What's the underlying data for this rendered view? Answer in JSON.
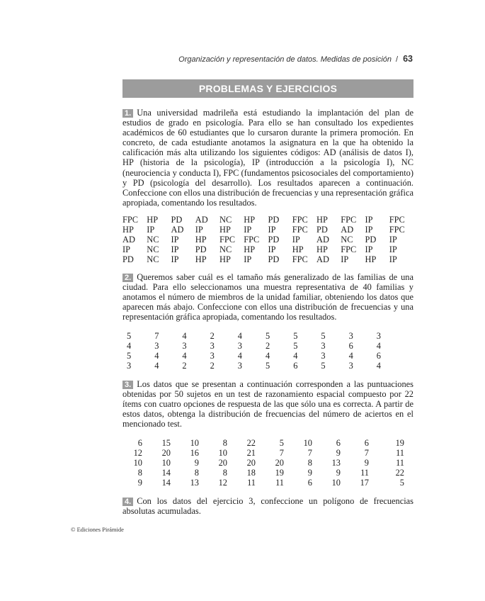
{
  "header": {
    "running_title": "Organización y representación de datos. Medidas de posición",
    "separator": "/",
    "page_number": "63"
  },
  "banner": "PROBLEMAS Y EJERCICIOS",
  "exercises": [
    {
      "number": "1.",
      "text": "Una universidad madrileña está estudiando la implantación del plan de estudios de grado en psicología. Para ello se han consultado los expedientes académicos de 60 estudiantes que lo cursaron durante la primera promoción. En concreto, de cada estudiante anotamos la asignatura en la que ha obtenido la calificación más alta utilizando los siguientes códigos: AD (análisis de datos I), HP (historia de la psicología), IP (introducción a la psicología I), NC (neurociencia y conducta I), FPC (fundamentos psicosociales del comportamiento) y PD (psicología del desarrollo). Los resultados aparecen a continuación. Confeccione con ellos una distribución de frecuencias y una representación gráfica apropiada, comentando los resultados."
    },
    {
      "number": "2.",
      "text": "Queremos saber cuál es el tamaño más generalizado de las familias de una ciudad. Para ello seleccionamos una muestra representativa de 40 familias y anotamos el número de miembros de la unidad familiar, obteniendo los datos que aparecen más abajo. Confeccione con ellos una distribución de frecuencias y una representación gráfica apropiada, comentando los resultados."
    },
    {
      "number": "3.",
      "text": "Los datos que se presentan a continuación corresponden a las puntuaciones obtenidas por 50 sujetos en un test de razonamiento espacial compuesto por 22 ítems con cuatro opciones de respuesta de las que sólo una es correcta. A partir de estos datos, obtenga la distribución de frecuencias del número de aciertos en el mencionado test."
    },
    {
      "number": "4.",
      "text": "Con los datos del ejercicio 3, confeccione un polígono de frecuencias absolutas acumuladas."
    }
  ],
  "table1": [
    [
      "FPC",
      "HP",
      "PD",
      "AD",
      "NC",
      "HP",
      "PD",
      "FPC",
      "HP",
      "FPC",
      "IP",
      "FPC"
    ],
    [
      "HP",
      "IP",
      "AD",
      "IP",
      "HP",
      "IP",
      "IP",
      "FPC",
      "PD",
      "AD",
      "IP",
      "FPC"
    ],
    [
      "AD",
      "NC",
      "IP",
      "HP",
      "FPC",
      "FPC",
      "PD",
      "IP",
      "AD",
      "NC",
      "PD",
      "IP"
    ],
    [
      "IP",
      "NC",
      "IP",
      "PD",
      "NC",
      "HP",
      "IP",
      "HP",
      "HP",
      "FPC",
      "IP",
      "IP"
    ],
    [
      "PD",
      "NC",
      "IP",
      "HP",
      "HP",
      "IP",
      "PD",
      "FPC",
      "AD",
      "IP",
      "HP",
      "IP"
    ]
  ],
  "table2": [
    [
      "5",
      "7",
      "4",
      "2",
      "4",
      "5",
      "5",
      "5",
      "3",
      "3"
    ],
    [
      "4",
      "3",
      "3",
      "3",
      "3",
      "2",
      "5",
      "3",
      "6",
      "4"
    ],
    [
      "5",
      "4",
      "4",
      "3",
      "4",
      "4",
      "4",
      "3",
      "4",
      "6"
    ],
    [
      "3",
      "4",
      "2",
      "2",
      "3",
      "5",
      "6",
      "5",
      "3",
      "4"
    ]
  ],
  "table3": [
    [
      "6",
      "15",
      "10",
      "8",
      "22",
      "5",
      "10",
      "6",
      "6",
      "19"
    ],
    [
      "12",
      "20",
      "16",
      "10",
      "21",
      "7",
      "7",
      "9",
      "7",
      "11"
    ],
    [
      "10",
      "10",
      "9",
      "20",
      "20",
      "20",
      "8",
      "13",
      "9",
      "11"
    ],
    [
      "8",
      "14",
      "8",
      "8",
      "18",
      "19",
      "9",
      "9",
      "11",
      "22"
    ],
    [
      "9",
      "14",
      "13",
      "12",
      "11",
      "11",
      "6",
      "10",
      "17",
      "5"
    ]
  ],
  "footer": "© Ediciones Pirámide"
}
